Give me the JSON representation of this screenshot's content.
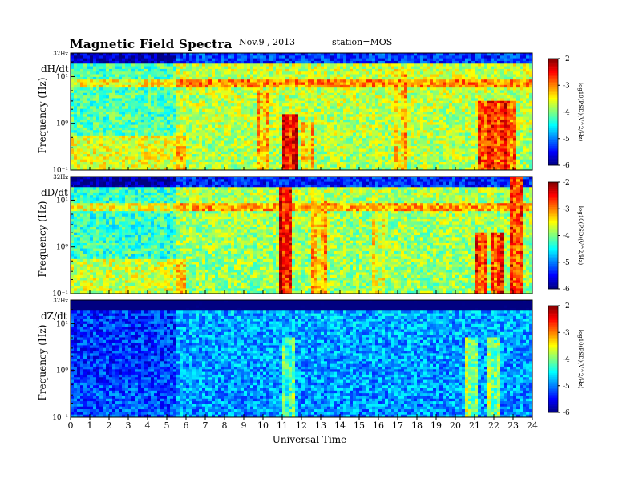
{
  "header": {
    "title": "Magnetic Field Spectra",
    "date": "Nov.9 , 2013",
    "station": "station=MOS"
  },
  "chart_data": {
    "type": "heatmap",
    "xlabel": "Universal Time",
    "xlim": [
      0,
      24
    ],
    "x_ticks": [
      "0",
      "1",
      "2",
      "3",
      "4",
      "5",
      "6",
      "7",
      "8",
      "9",
      "10",
      "11",
      "12",
      "13",
      "14",
      "15",
      "16",
      "17",
      "18",
      "19",
      "20",
      "21",
      "22",
      "23",
      "24"
    ],
    "ylim_hz": [
      0.1,
      32
    ],
    "y_scale": "log",
    "colorbar": {
      "label": "log10(PSD)(V^2/Hz)",
      "range": [
        -6,
        -2
      ],
      "ticks": [
        "-2",
        "-3",
        "-4",
        "-5",
        "-6"
      ],
      "colormap": "jet"
    },
    "panels": [
      {
        "label": "dH/dt",
        "ylabel": "Frequency (Hz)",
        "top_tick": "32Hz",
        "y_ticks": [
          "10¹",
          "10⁰",
          "10⁻¹"
        ],
        "background_level": -4.2,
        "events": [
          {
            "t": 11.4,
            "fmax_hz": 1.5,
            "level": -2.8
          },
          {
            "t": 12.3,
            "fmax_hz": 1.0,
            "level": -3.6
          },
          {
            "t": 10.0,
            "fmax_hz": 5.0,
            "level": -3.5
          },
          {
            "t": 17.1,
            "fmax_hz": 15.0,
            "level": -3.6
          },
          {
            "t": 21.5,
            "fmax_hz": 3.0,
            "level": -3.0
          },
          {
            "t": 22.2,
            "fmax_hz": 3.0,
            "level": -3.0
          },
          {
            "t": 22.9,
            "fmax_hz": 3.0,
            "level": -3.0
          }
        ]
      },
      {
        "label": "dD/dt",
        "ylabel": "Frequency (Hz)",
        "top_tick": "32Hz",
        "y_ticks": [
          "10¹",
          "10⁰",
          "10⁻¹"
        ],
        "background_level": -4.3,
        "events": [
          {
            "t": 11.2,
            "fmax_hz": 20.0,
            "level": -2.8
          },
          {
            "t": 12.9,
            "fmax_hz": 10.0,
            "level": -3.5
          },
          {
            "t": 16.0,
            "fmax_hz": 4.0,
            "level": -3.8
          },
          {
            "t": 21.4,
            "fmax_hz": 2.0,
            "level": -3.0
          },
          {
            "t": 22.1,
            "fmax_hz": 2.0,
            "level": -3.0
          },
          {
            "t": 23.2,
            "fmax_hz": 30.0,
            "level": -3.0
          }
        ]
      },
      {
        "label": "dZ/dt",
        "ylabel": "Frequency (Hz)",
        "top_tick": "32Hz",
        "y_ticks": [
          "10¹",
          "10⁰",
          "10⁻¹"
        ],
        "background_level": -5.3,
        "events": [
          {
            "t": 11.3,
            "fmax_hz": 5.0,
            "level": -4.4
          },
          {
            "t": 20.9,
            "fmax_hz": 5.0,
            "level": -4.2
          },
          {
            "t": 22.0,
            "fmax_hz": 5.0,
            "level": -4.2
          }
        ]
      }
    ]
  }
}
